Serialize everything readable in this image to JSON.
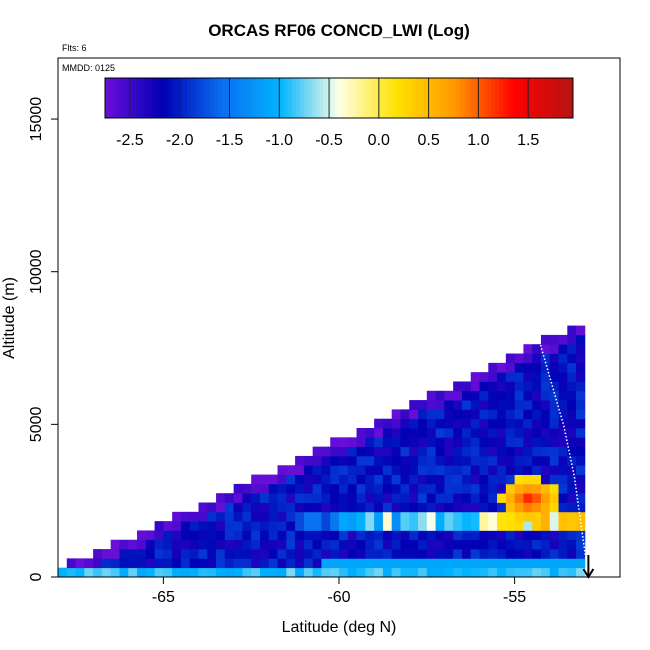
{
  "chart_data": {
    "type": "heatmap",
    "title": "ORCAS RF06 CONCD_LWI (Log)",
    "flights_label": "Flts: 6",
    "date_label": "MMDD: 0125",
    "xlabel": "Latitude (deg N)",
    "ylabel": "Altitude (m)",
    "xlim": [
      -68,
      -52
    ],
    "ylim": [
      0,
      17000
    ],
    "x_ticks": [
      -65,
      -60,
      -55
    ],
    "y_ticks": [
      0,
      5000,
      10000,
      15000
    ],
    "grid": false,
    "colorbar": {
      "placement": "top-inset",
      "range": [
        -2.75,
        1.95
      ],
      "ticks": [
        -2.5,
        -2.0,
        -1.5,
        -1.0,
        -0.5,
        0.0,
        0.5,
        1.0,
        1.5
      ],
      "tick_labels": [
        "-2.5",
        "-2.0",
        "-1.5",
        "-1.0",
        "-0.5",
        "0.0",
        "0.5",
        "1.0",
        "1.5"
      ],
      "colors": [
        "#6a0fd8",
        "#0000b4",
        "#0a6ef0",
        "#00b4ff",
        "#ffffe6",
        "#ffe100",
        "#ff9600",
        "#ff0000",
        "#b41414"
      ]
    },
    "grid_spec": {
      "lat_start": -68,
      "lat_step": 0.25,
      "lat_count": 60,
      "alt_step": 305,
      "alt_count": 27,
      "top_alt_at_start": 230,
      "top_alt_at_end": 8200
    },
    "field_description_values": {
      "background_level": -2.1,
      "upper_edge_level": -2.6,
      "surface_level": -0.9,
      "low_cloud_band_alt": 1700,
      "low_cloud_band_level": 0.5,
      "hot_spot_lat": -54.7,
      "hot_spot_alt": 2400,
      "hot_spot_level": 1.3
    },
    "flight_track": {
      "points": [
        [
          -54.4,
          8150
        ],
        [
          -53.6,
          4950
        ],
        [
          -53.3,
          3300
        ],
        [
          -52.9,
          0
        ]
      ],
      "arrow_at_end": true
    }
  }
}
